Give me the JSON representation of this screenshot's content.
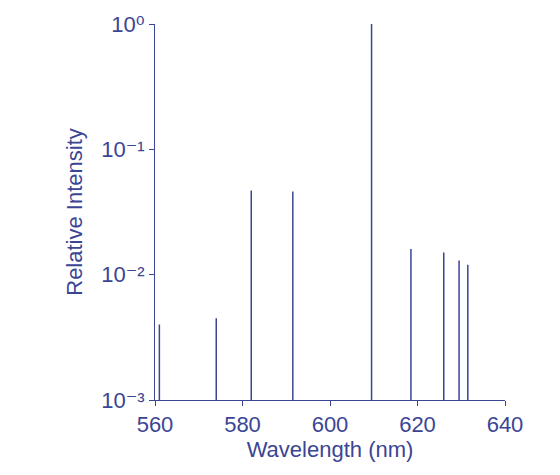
{
  "chart_data": {
    "type": "stem",
    "x_label": "Wavelength (nm)",
    "y_label": "Relative Intensity",
    "x": [
      561,
      574,
      582,
      591.5,
      609.5,
      618.5,
      626,
      629.5,
      631.5
    ],
    "values": [
      0.004,
      0.0045,
      0.047,
      0.046,
      1,
      0.016,
      0.015,
      0.013,
      0.012
    ],
    "color": "#3b4594",
    "xlim": [
      560,
      640
    ],
    "xticks": [
      560,
      580,
      600,
      620,
      640
    ],
    "ylim": [
      0.001,
      1
    ],
    "yticks": [
      {
        "value": 0.001,
        "label": "10⁻³"
      },
      {
        "value": 0.01,
        "label": "10⁻²"
      },
      {
        "value": 0.1,
        "label": "10⁻¹"
      },
      {
        "value": 1,
        "label": "10⁰"
      }
    ],
    "log": "y",
    "grid": false
  }
}
